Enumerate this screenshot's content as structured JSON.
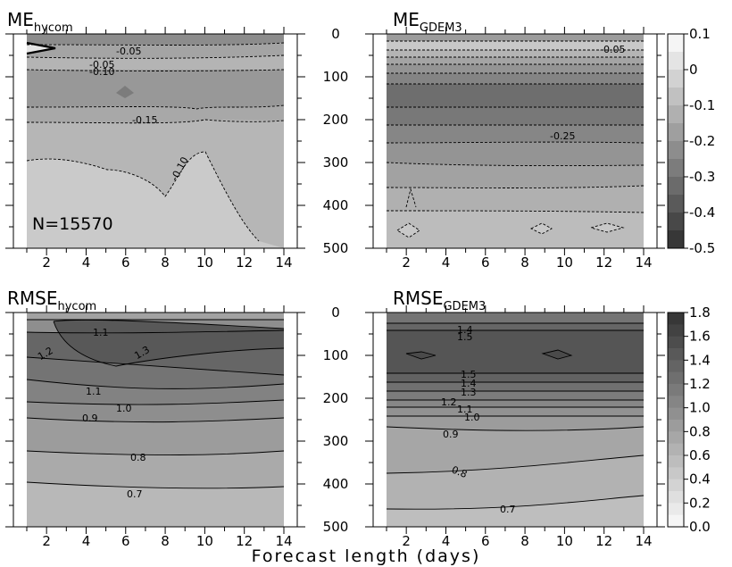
{
  "chart_data": {
    "type": "heatmap",
    "xlabel": "Forecast length (days)",
    "x_ticks": [
      2,
      4,
      6,
      8,
      10,
      12,
      14
    ],
    "x_range": [
      1,
      14
    ],
    "depth_ticks": [
      0,
      100,
      200,
      300,
      400,
      500
    ],
    "depth_range": [
      0,
      500
    ],
    "panels": [
      {
        "title_main": "ME",
        "title_sub": "hycom",
        "annotation": "N=15570",
        "colorbar": "me",
        "contour_labels": [
          "-0.05",
          "-0.05",
          "-0.10",
          "-0.15",
          "-0.10"
        ]
      },
      {
        "title_main": "ME",
        "title_sub": "GDEM3",
        "colorbar": "me",
        "contour_labels": [
          "-0.05",
          "-0.25"
        ]
      },
      {
        "title_main": "RMSE",
        "title_sub": "hycom",
        "colorbar": "rmse",
        "contour_labels": [
          "1.1",
          "1.2",
          "1.3",
          "1.1",
          "1.0",
          "0.9",
          "0.8",
          "0.7"
        ]
      },
      {
        "title_main": "RMSE",
        "title_sub": "GDEM3",
        "colorbar": "rmse",
        "contour_labels": [
          "1.4",
          "1.5",
          "1.5",
          "1.4",
          "1.3",
          "1.2",
          "1.1",
          "1.0",
          "0.9",
          "0.8",
          "0.7"
        ]
      }
    ],
    "colorbars": {
      "me": {
        "tick_labels": [
          "0.1",
          "0",
          "-0.1",
          "-0.2",
          "-0.3",
          "-0.4",
          "-0.5"
        ],
        "levels": 12
      },
      "rmse": {
        "tick_labels": [
          "1.8",
          "1.6",
          "1.4",
          "1.2",
          "1.0",
          "0.8",
          "0.6",
          "0.4",
          "0.2",
          "0.0"
        ],
        "levels": 18
      }
    }
  }
}
